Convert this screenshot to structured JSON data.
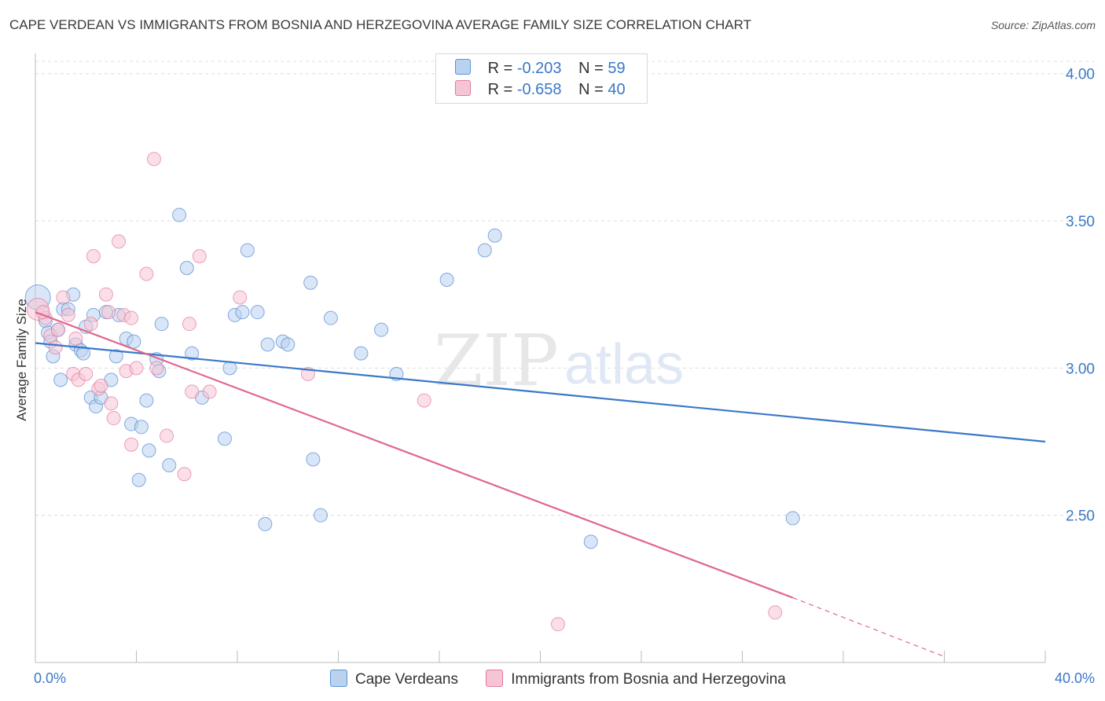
{
  "title": "CAPE VERDEAN VS IMMIGRANTS FROM BOSNIA AND HERZEGOVINA AVERAGE FAMILY SIZE CORRELATION CHART",
  "source": "Source: ZipAtlas.com",
  "watermark": {
    "zip": "ZIP",
    "atlas": "atlas"
  },
  "legend": {
    "r_label": "R =",
    "n_label": "N =",
    "series": [
      {
        "name": "Cape Verdeans",
        "r": "-0.203",
        "n": "59",
        "color": "#5b93d6",
        "fill": "#b9d2f0"
      },
      {
        "name": "Immigrants from Bosnia and Herzegovina",
        "r": "-0.658",
        "n": "40",
        "color": "#e07a9c",
        "fill": "#f6c5d5"
      }
    ]
  },
  "chart_data": {
    "type": "scatter",
    "title": "CAPE VERDEAN VS IMMIGRANTS FROM BOSNIA AND HERZEGOVINA AVERAGE FAMILY SIZE CORRELATION CHART",
    "xlabel": "",
    "ylabel": "Average Family Size",
    "xlim": [
      0,
      40
    ],
    "ylim": [
      2.0,
      4.05
    ],
    "x_tick_labels": [
      "0.0%",
      "40.0%"
    ],
    "y_ticks": [
      2.5,
      3.0,
      3.5,
      4.0
    ],
    "y_tick_labels": [
      "2.50",
      "3.00",
      "3.50",
      "4.00"
    ],
    "series": [
      {
        "name": "Cape Verdeans",
        "color": "#3a78c9",
        "trend": {
          "x0": 0,
          "y0": 3.085,
          "x1": 40,
          "y1": 2.75
        },
        "points": [
          [
            0.1,
            3.24
          ],
          [
            0.4,
            3.16
          ],
          [
            0.5,
            3.12
          ],
          [
            0.6,
            3.09
          ],
          [
            0.7,
            3.04
          ],
          [
            0.9,
            3.13
          ],
          [
            1.0,
            2.96
          ],
          [
            1.1,
            3.2
          ],
          [
            1.3,
            3.2
          ],
          [
            1.5,
            3.25
          ],
          [
            1.6,
            3.08
          ],
          [
            1.8,
            3.06
          ],
          [
            1.9,
            3.05
          ],
          [
            2.0,
            3.14
          ],
          [
            2.2,
            2.9
          ],
          [
            2.3,
            3.18
          ],
          [
            2.4,
            2.87
          ],
          [
            2.6,
            2.9
          ],
          [
            2.8,
            3.19
          ],
          [
            3.0,
            2.96
          ],
          [
            3.2,
            3.04
          ],
          [
            3.3,
            3.18
          ],
          [
            3.6,
            3.1
          ],
          [
            3.8,
            2.81
          ],
          [
            3.9,
            3.09
          ],
          [
            4.1,
            2.62
          ],
          [
            4.2,
            2.8
          ],
          [
            4.4,
            2.89
          ],
          [
            4.5,
            2.72
          ],
          [
            4.8,
            3.03
          ],
          [
            4.9,
            2.99
          ],
          [
            5.0,
            3.15
          ],
          [
            5.3,
            2.67
          ],
          [
            5.7,
            3.52
          ],
          [
            6.0,
            3.34
          ],
          [
            6.2,
            3.05
          ],
          [
            6.6,
            2.9
          ],
          [
            7.5,
            2.76
          ],
          [
            7.7,
            3.0
          ],
          [
            7.9,
            3.18
          ],
          [
            8.2,
            3.19
          ],
          [
            8.4,
            3.4
          ],
          [
            8.8,
            3.19
          ],
          [
            9.1,
            2.47
          ],
          [
            9.2,
            3.08
          ],
          [
            9.8,
            3.09
          ],
          [
            10.0,
            3.08
          ],
          [
            10.9,
            3.29
          ],
          [
            11.0,
            2.69
          ],
          [
            11.3,
            2.5
          ],
          [
            11.7,
            3.17
          ],
          [
            12.9,
            3.05
          ],
          [
            13.7,
            3.13
          ],
          [
            14.3,
            2.98
          ],
          [
            16.3,
            3.3
          ],
          [
            17.8,
            3.4
          ],
          [
            18.2,
            3.45
          ],
          [
            22.0,
            2.41
          ],
          [
            30.0,
            2.49
          ]
        ]
      },
      {
        "name": "Immigrants from Bosnia and Herzegovina",
        "color": "#e0678f",
        "trend": {
          "x0": 0,
          "y0": 3.19,
          "x1": 30,
          "y1": 2.22,
          "dash_x1": 36,
          "dash_y1": 2.02
        },
        "points": [
          [
            0.1,
            3.2
          ],
          [
            0.4,
            3.17
          ],
          [
            0.6,
            3.11
          ],
          [
            0.8,
            3.07
          ],
          [
            0.9,
            3.13
          ],
          [
            1.1,
            3.24
          ],
          [
            1.3,
            3.18
          ],
          [
            1.5,
            2.98
          ],
          [
            1.6,
            3.1
          ],
          [
            1.7,
            2.96
          ],
          [
            2.0,
            2.98
          ],
          [
            2.2,
            3.15
          ],
          [
            2.3,
            3.38
          ],
          [
            2.5,
            2.93
          ],
          [
            2.6,
            2.94
          ],
          [
            2.8,
            3.25
          ],
          [
            2.9,
            3.19
          ],
          [
            3.0,
            2.88
          ],
          [
            3.1,
            2.83
          ],
          [
            3.3,
            3.43
          ],
          [
            3.5,
            3.18
          ],
          [
            3.6,
            2.99
          ],
          [
            3.8,
            3.17
          ],
          [
            3.8,
            2.74
          ],
          [
            4.0,
            3.0
          ],
          [
            4.4,
            3.32
          ],
          [
            4.8,
            3.0
          ],
          [
            4.7,
            3.71
          ],
          [
            5.2,
            2.77
          ],
          [
            5.9,
            2.64
          ],
          [
            6.1,
            3.15
          ],
          [
            6.2,
            2.92
          ],
          [
            6.5,
            3.38
          ],
          [
            6.9,
            2.92
          ],
          [
            8.1,
            3.24
          ],
          [
            10.8,
            2.98
          ],
          [
            15.4,
            2.89
          ],
          [
            20.7,
            2.13
          ],
          [
            29.3,
            2.17
          ],
          [
            0.3,
            3.19
          ]
        ]
      }
    ]
  }
}
